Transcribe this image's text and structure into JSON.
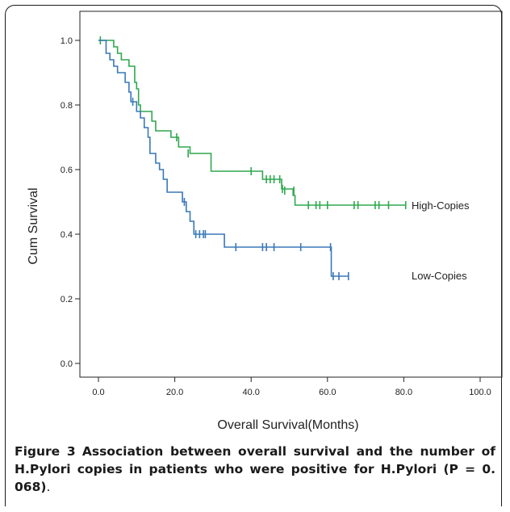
{
  "chart_data": {
    "type": "line",
    "subtype": "kaplan-meier step",
    "xlabel": "Overall Survival(Months)",
    "ylabel": "Cum Survival",
    "xlim": [
      0,
      100
    ],
    "ylim": [
      0,
      1
    ],
    "x_ticks": [
      "0.0",
      "20.0",
      "40.0",
      "60.0",
      "80.0",
      "100.0"
    ],
    "y_ticks": [
      "0.0",
      "0.2",
      "0.4",
      "0.6",
      "0.8",
      "1.0"
    ],
    "grid": false,
    "series": [
      {
        "name": "High-Copies",
        "color": "#2fa84f",
        "steps": [
          [
            0,
            1.0
          ],
          [
            4,
            0.98
          ],
          [
            5,
            0.96
          ],
          [
            6,
            0.94
          ],
          [
            8,
            0.92
          ],
          [
            9.5,
            0.87
          ],
          [
            10,
            0.85
          ],
          [
            10.5,
            0.8
          ],
          [
            11,
            0.78
          ],
          [
            14,
            0.75
          ],
          [
            15,
            0.72
          ],
          [
            19,
            0.7
          ],
          [
            21,
            0.67
          ],
          [
            24,
            0.65
          ],
          [
            29.5,
            0.595
          ],
          [
            43,
            0.57
          ],
          [
            48,
            0.54
          ],
          [
            51,
            0.52
          ],
          [
            51.5,
            0.49
          ],
          [
            80.5,
            0.49
          ]
        ],
        "censored": [
          [
            0.5,
            1.0
          ],
          [
            20.5,
            0.7
          ],
          [
            23.5,
            0.65
          ],
          [
            40,
            0.595
          ],
          [
            44,
            0.57
          ],
          [
            45,
            0.57
          ],
          [
            46,
            0.57
          ],
          [
            47.5,
            0.57
          ],
          [
            48.2,
            0.54
          ],
          [
            48.8,
            0.535
          ],
          [
            51.2,
            0.535
          ],
          [
            55,
            0.49
          ],
          [
            57,
            0.49
          ],
          [
            58,
            0.49
          ],
          [
            60,
            0.49
          ],
          [
            67,
            0.49
          ],
          [
            68,
            0.49
          ],
          [
            72.5,
            0.49
          ],
          [
            73.5,
            0.49
          ],
          [
            76,
            0.49
          ],
          [
            80.5,
            0.49
          ]
        ]
      },
      {
        "name": "Low-Copies",
        "color": "#3a78b8",
        "steps": [
          [
            0,
            1.0
          ],
          [
            2,
            0.96
          ],
          [
            3,
            0.94
          ],
          [
            4,
            0.92
          ],
          [
            5,
            0.9
          ],
          [
            7,
            0.87
          ],
          [
            8,
            0.84
          ],
          [
            8.5,
            0.81
          ],
          [
            10,
            0.78
          ],
          [
            11,
            0.76
          ],
          [
            12,
            0.73
          ],
          [
            13,
            0.7
          ],
          [
            13.5,
            0.65
          ],
          [
            15,
            0.62
          ],
          [
            16,
            0.6
          ],
          [
            17,
            0.57
          ],
          [
            18,
            0.53
          ],
          [
            22,
            0.5
          ],
          [
            23,
            0.47
          ],
          [
            24,
            0.44
          ],
          [
            25,
            0.4
          ],
          [
            33,
            0.36
          ],
          [
            61,
            0.27
          ],
          [
            65.5,
            0.27
          ]
        ],
        "censored": [
          [
            9,
            0.81
          ],
          [
            22.5,
            0.5
          ],
          [
            25.5,
            0.4
          ],
          [
            26.5,
            0.4
          ],
          [
            27.5,
            0.4
          ],
          [
            28,
            0.4
          ],
          [
            36,
            0.36
          ],
          [
            43,
            0.36
          ],
          [
            44,
            0.36
          ],
          [
            46,
            0.36
          ],
          [
            53,
            0.36
          ],
          [
            60.8,
            0.36
          ],
          [
            61.5,
            0.27
          ],
          [
            63,
            0.27
          ],
          [
            65.5,
            0.27
          ]
        ]
      }
    ],
    "annotations": [
      "High-Copies",
      "Low-Copies"
    ]
  },
  "caption": {
    "label": "Figure 3",
    "text_bold": "Association between overall survival and the number of H.Pylori copies in patients who were positive for H.Pylori (P = 0. 068)",
    "end": "."
  }
}
